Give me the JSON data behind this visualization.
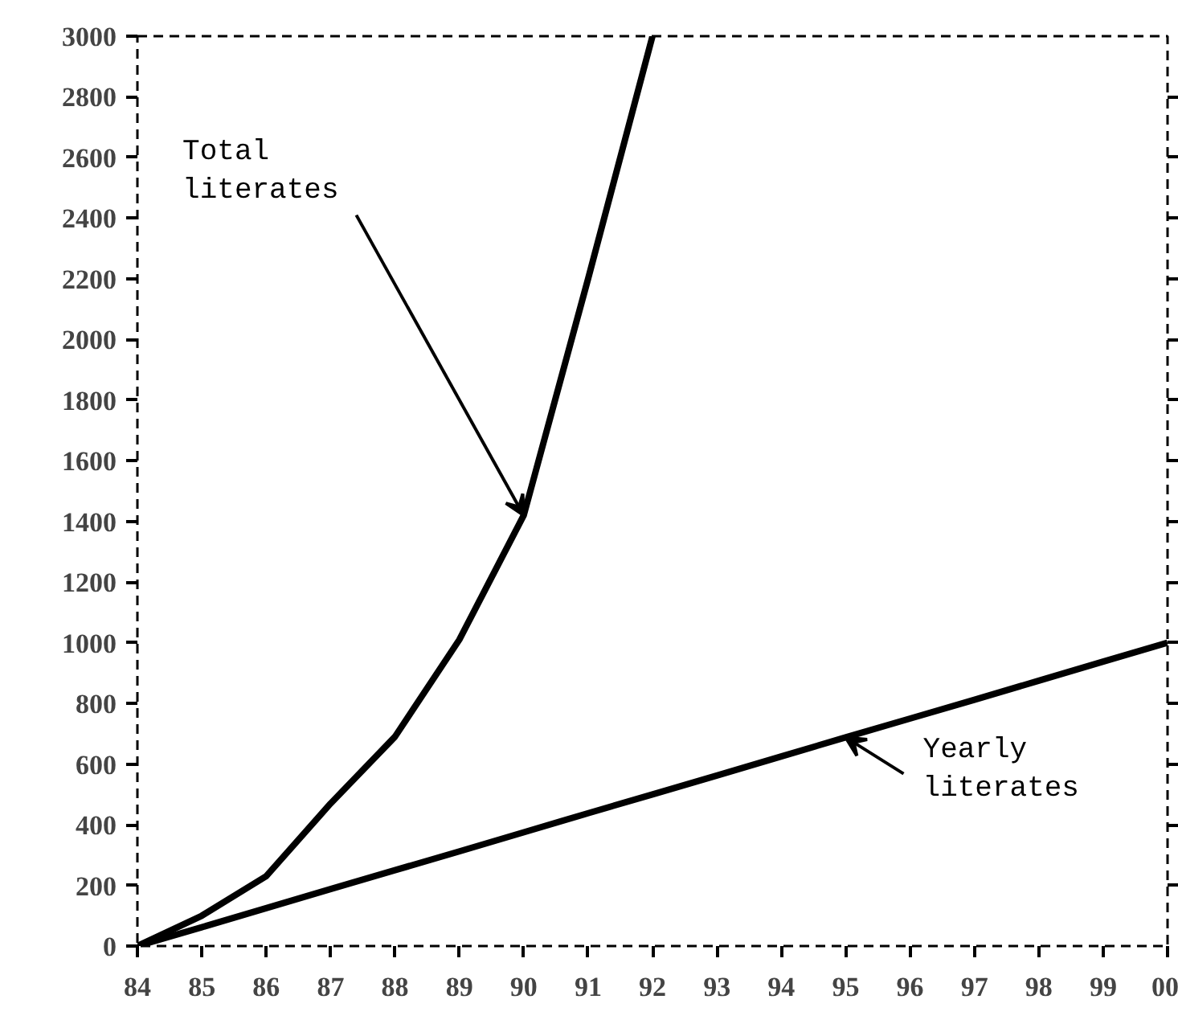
{
  "chart_data": {
    "type": "line",
    "categories": [
      "84",
      "85",
      "86",
      "87",
      "88",
      "89",
      "90",
      "91",
      "92",
      "93",
      "94",
      "95",
      "96",
      "97",
      "98",
      "99",
      "00"
    ],
    "series": [
      {
        "color": "#000000",
        "values": [
          0,
          100,
          230,
          470,
          690,
          1010,
          1420,
          2200,
          3000,
          null,
          null,
          null,
          null,
          null,
          null,
          null,
          null
        ]
      },
      {
        "color": "#000000",
        "values": [
          0,
          62,
          125,
          188,
          250,
          312,
          375,
          438,
          500,
          562,
          625,
          688,
          750,
          812,
          875,
          938,
          1000
        ]
      }
    ],
    "annotations": [
      {
        "text": "Total\nliterates",
        "x": "90",
        "y": 1420
      },
      {
        "text": "Yearly\nliterates",
        "x": "95",
        "y": 688
      }
    ],
    "ylim": [
      0,
      3000
    ],
    "yticks": [
      0,
      200,
      400,
      600,
      800,
      1000,
      1200,
      1400,
      1600,
      1800,
      2000,
      2200,
      2400,
      2600,
      2800,
      3000
    ],
    "grid": false,
    "marker": "none",
    "line_style": "solid"
  }
}
